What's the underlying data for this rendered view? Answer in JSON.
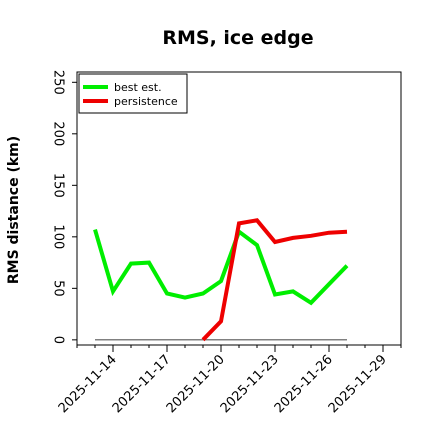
{
  "chart_data": {
    "type": "line",
    "title": "RMS, ice edge",
    "xlabel": "",
    "ylabel": "RMS distance (km)",
    "x_ticks": [
      "2025-11-14",
      "2025-11-17",
      "2025-11-20",
      "2025-11-23",
      "2025-11-26",
      "2025-11-29"
    ],
    "y_ticks": [
      "0",
      "50",
      "100",
      "150",
      "200",
      "250"
    ],
    "xlim": [
      "2025-11-12",
      "2025-11-30"
    ],
    "ylim": [
      -5,
      260
    ],
    "grid": false,
    "legend_position": "top-left",
    "series": [
      {
        "name": "best est.",
        "color": "#00ee00",
        "x": [
          "2025-11-13",
          "2025-11-14",
          "2025-11-15",
          "2025-11-16",
          "2025-11-17",
          "2025-11-18",
          "2025-11-19",
          "2025-11-20",
          "2025-11-21",
          "2025-11-22",
          "2025-11-23",
          "2025-11-24",
          "2025-11-25",
          "2025-11-26",
          "2025-11-27"
        ],
        "y": [
          107,
          47,
          74,
          75,
          45,
          41,
          45,
          57,
          105,
          92,
          44,
          47,
          36,
          54,
          72
        ]
      },
      {
        "name": "persistence",
        "color": "#ee0000",
        "x": [
          "2025-11-19",
          "2025-11-20",
          "2025-11-21",
          "2025-11-22",
          "2025-11-23",
          "2025-11-24",
          "2025-11-25",
          "2025-11-26",
          "2025-11-27"
        ],
        "y": [
          0,
          18,
          113,
          116,
          95,
          99,
          101,
          104,
          105
        ]
      },
      {
        "name": "",
        "color": "#808080",
        "x": [
          "2025-11-13",
          "2025-11-27"
        ],
        "y": [
          0,
          0
        ]
      }
    ]
  }
}
